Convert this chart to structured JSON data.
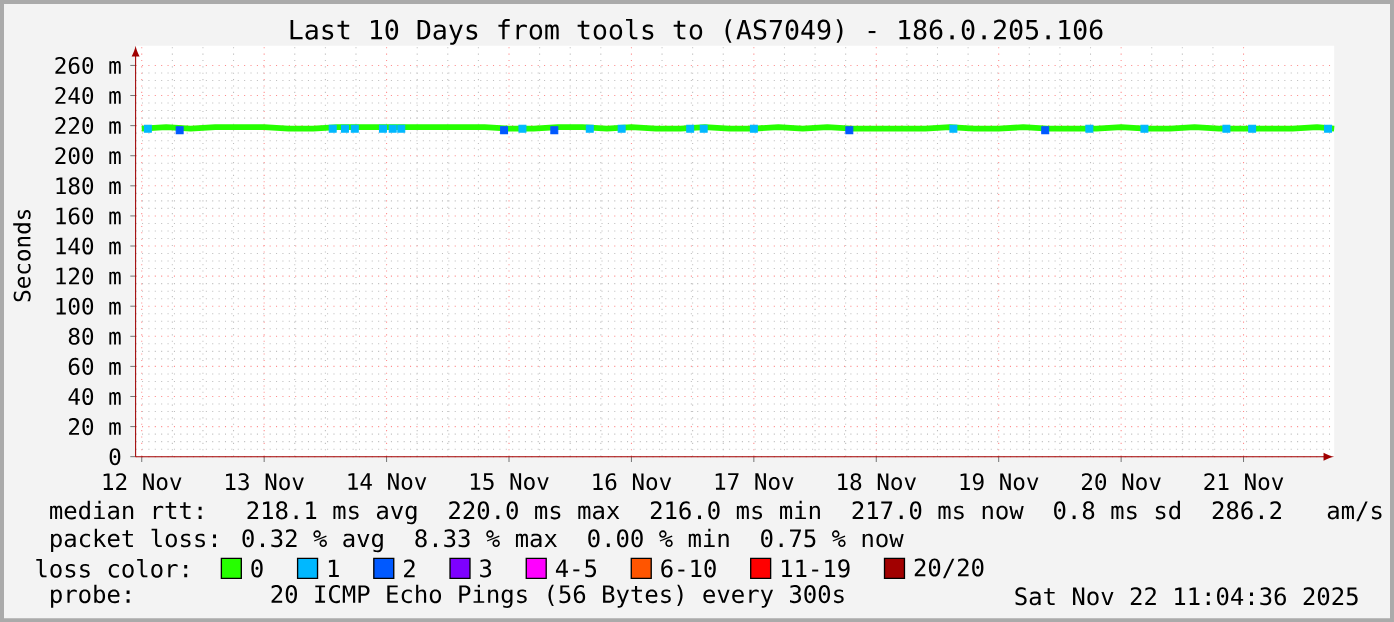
{
  "chart_data": {
    "type": "line",
    "title": "Last 10 Days from tools to (AS7049) - 186.0.205.106",
    "ylabel": "Seconds",
    "legend_title": "loss color:",
    "legend": "bottom",
    "grid": true,
    "xlim": [
      "2025-11-12T10:48",
      "2025-11-22T05:46"
    ],
    "ylim": [
      0,
      273
    ],
    "xticks": [
      {
        "value": "2025-11-12T12:00",
        "label": "12 Nov"
      },
      {
        "value": "2025-11-13T12:00",
        "label": "13 Nov"
      },
      {
        "value": "2025-11-14T12:00",
        "label": "14 Nov"
      },
      {
        "value": "2025-11-15T12:00",
        "label": "15 Nov"
      },
      {
        "value": "2025-11-16T12:00",
        "label": "16 Nov"
      },
      {
        "value": "2025-11-17T12:00",
        "label": "17 Nov"
      },
      {
        "value": "2025-11-18T12:00",
        "label": "18 Nov"
      },
      {
        "value": "2025-11-19T12:00",
        "label": "19 Nov"
      },
      {
        "value": "2025-11-20T12:00",
        "label": "20 Nov"
      },
      {
        "value": "2025-11-21T12:00",
        "label": "21 Nov"
      }
    ],
    "yticks": [
      0,
      {
        "value": 20,
        "label": "20 m"
      },
      {
        "value": 40,
        "label": "40 m"
      },
      {
        "value": 60,
        "label": "60 m"
      },
      {
        "value": 80,
        "label": "80 m"
      },
      {
        "value": 100,
        "label": "100 m"
      },
      {
        "value": 120,
        "label": "120 m"
      },
      {
        "value": 140,
        "label": "140 m"
      },
      {
        "value": 160,
        "label": "160 m"
      },
      {
        "value": 180,
        "label": "180 m"
      },
      {
        "value": 200,
        "label": "200 m"
      },
      {
        "value": 220,
        "label": "220 m"
      },
      {
        "value": 240,
        "label": "240 m"
      },
      {
        "value": 260,
        "label": "260 m"
      }
    ],
    "series": [
      {
        "name": "0",
        "color": "#26ff00",
        "marker": "none",
        "x": [
          "2025-11-12T12:00",
          "2025-11-12T16:48",
          "2025-11-12T21:36",
          "2025-11-13T02:24",
          "2025-11-13T07:12",
          "2025-11-13T12:00",
          "2025-11-13T16:48",
          "2025-11-13T21:36",
          "2025-11-14T02:24",
          "2025-11-14T07:12",
          "2025-11-14T12:00",
          "2025-11-14T16:48",
          "2025-11-14T21:36",
          "2025-11-15T02:24",
          "2025-11-15T07:12",
          "2025-11-15T12:00",
          "2025-11-15T16:48",
          "2025-11-15T21:36",
          "2025-11-16T02:24",
          "2025-11-16T07:12",
          "2025-11-16T12:00",
          "2025-11-16T16:48",
          "2025-11-16T21:36",
          "2025-11-17T02:24",
          "2025-11-17T07:12",
          "2025-11-17T12:00",
          "2025-11-17T16:48",
          "2025-11-17T21:36",
          "2025-11-18T02:24",
          "2025-11-18T07:12",
          "2025-11-18T12:00",
          "2025-11-18T16:48",
          "2025-11-18T21:36",
          "2025-11-19T02:24",
          "2025-11-19T07:12",
          "2025-11-19T12:00",
          "2025-11-19T16:48",
          "2025-11-19T21:36",
          "2025-11-20T02:24",
          "2025-11-20T07:12",
          "2025-11-20T12:00",
          "2025-11-20T16:48",
          "2025-11-20T21:36",
          "2025-11-21T02:24",
          "2025-11-21T07:12",
          "2025-11-21T12:00",
          "2025-11-21T16:48",
          "2025-11-21T21:36",
          "2025-11-22T02:24",
          "2025-11-22T05:46"
        ],
        "values": [
          218,
          219,
          218,
          219,
          219,
          219,
          218,
          218,
          219,
          219,
          219,
          219,
          219,
          219,
          219,
          218,
          218,
          219,
          219,
          218,
          219,
          218,
          218,
          219,
          218,
          218,
          219,
          218,
          219,
          218,
          218,
          218,
          218,
          219,
          218,
          218,
          219,
          218,
          218,
          218,
          219,
          218,
          218,
          219,
          218,
          218,
          218,
          218,
          219,
          218
        ]
      },
      {
        "name": "1",
        "color": "#00b8ff",
        "type": "scatter",
        "marker": "square",
        "x": [
          "2025-11-12T13:12",
          "2025-11-14T01:26",
          "2025-11-14T03:50",
          "2025-11-14T05:46",
          "2025-11-14T11:17",
          "2025-11-14T13:12",
          "2025-11-14T14:53",
          "2025-11-15T14:38",
          "2025-11-16T03:50",
          "2025-11-16T10:05",
          "2025-11-16T23:31",
          "2025-11-17T02:10",
          "2025-11-17T12:00",
          "2025-11-19T03:07",
          "2025-11-19T21:07",
          "2025-11-20T05:46",
          "2025-11-20T16:34",
          "2025-11-21T08:38",
          "2025-11-21T13:41",
          "2025-11-22T04:34"
        ],
        "values": [
          218,
          218,
          218,
          218,
          218,
          218,
          218,
          218,
          218,
          218,
          218,
          218,
          218,
          218,
          null,
          218,
          218,
          218,
          218,
          218
        ]
      },
      {
        "name": "2",
        "color": "#0059ff",
        "type": "scatter",
        "marker": "square",
        "x": [
          "2025-11-12T19:26",
          "2025-11-15T11:02",
          "2025-11-15T20:53",
          "2025-11-18T06:43",
          "2025-11-19T21:07"
        ],
        "values": [
          217,
          217,
          217,
          217,
          217
        ]
      },
      {
        "name": "3",
        "color": "#7e00ff"
      },
      {
        "name": "4-5",
        "color": "#ff00ff"
      },
      {
        "name": "6-10",
        "color": "#ff5500"
      },
      {
        "name": "11-19",
        "color": "#ff0000"
      },
      {
        "name": "20/20",
        "color": "#a10000"
      }
    ],
    "annotations": [
      "median rtt:  218.1 ms avg  220.0 ms max  216.0 ms min  217.0 ms now  0.8 ms sd  286.2   am/s",
      "packet loss: 0.32 % avg  8.33 % max  0.00 % min  0.75 % now",
      "probe:       20 ICMP Echo Pings (56 Bytes) every 300s",
      "Sat Nov 22 11:04:36 2025"
    ]
  }
}
